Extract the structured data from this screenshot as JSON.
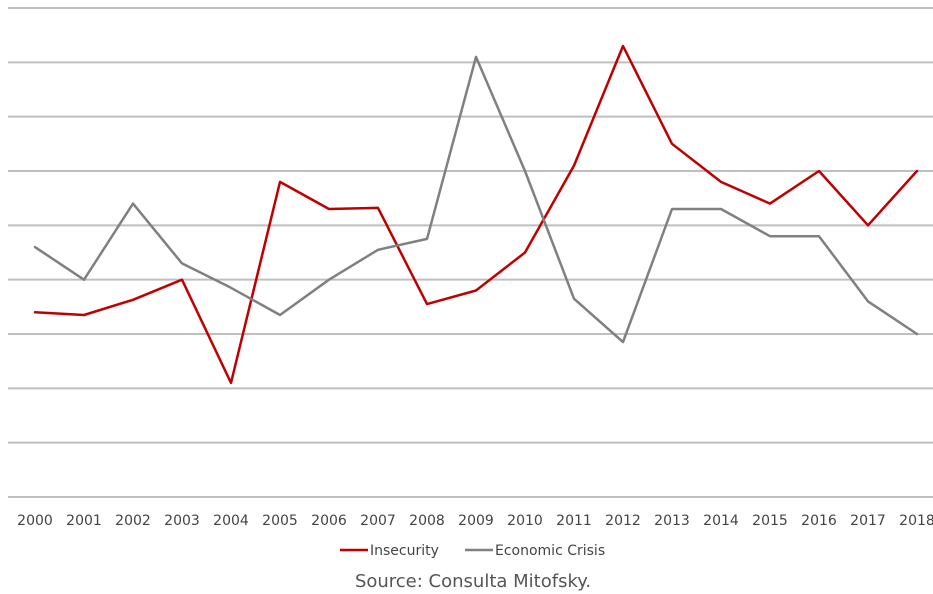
{
  "chart_data": {
    "type": "line",
    "title": "",
    "xlabel": "",
    "ylabel": "",
    "x": [
      "2000",
      "2001",
      "2002",
      "2003",
      "2004",
      "2005",
      "2006",
      "2007",
      "2008",
      "2009",
      "2010",
      "2011",
      "2012",
      "2013",
      "2014",
      "2015",
      "2016",
      "2017",
      "2018"
    ],
    "ylim": [
      0,
      9
    ],
    "grid": true,
    "legend_position": "bottom",
    "series": [
      {
        "name": "Insecurity",
        "color": "#c00000",
        "values": [
          3.4,
          3.35,
          3.63,
          4.0,
          2.1,
          5.8,
          5.3,
          5.32,
          3.55,
          3.8,
          4.5,
          6.1,
          8.3,
          6.5,
          5.8,
          5.4,
          6.0,
          5.0,
          6.0
        ]
      },
      {
        "name": "Economic Crisis",
        "color": "#808080",
        "values": [
          4.6,
          4.0,
          5.4,
          4.3,
          3.85,
          3.35,
          4.0,
          4.55,
          4.75,
          8.1,
          6.0,
          3.65,
          2.85,
          5.3,
          5.3,
          4.8,
          4.8,
          3.6,
          3.0
        ]
      }
    ]
  },
  "source": "Source: Consulta Mitofsky."
}
